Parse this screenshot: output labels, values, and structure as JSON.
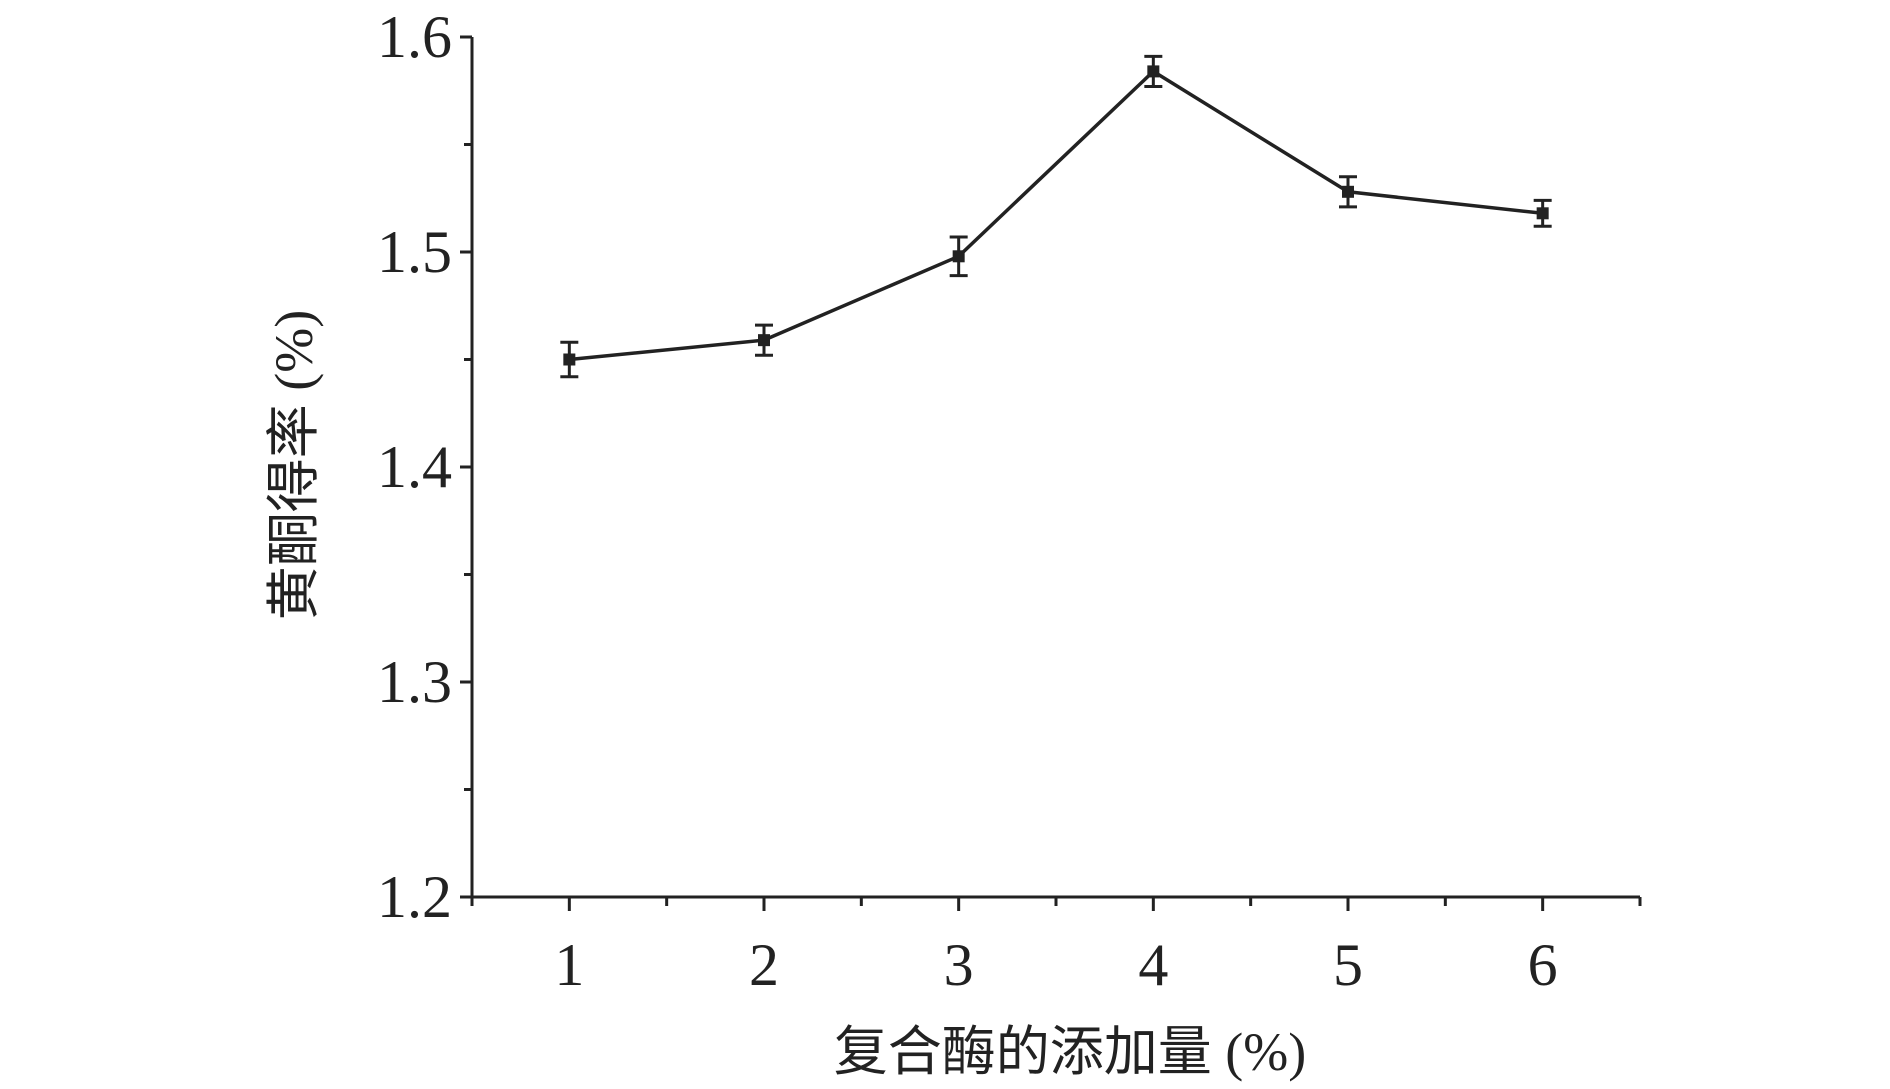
{
  "chart_data": {
    "type": "line",
    "xlabel": "复合酶的添加量 (%)",
    "ylabel": "黄酮得率 (%)",
    "x": [
      1,
      2,
      3,
      4,
      5,
      6
    ],
    "xticks": [
      "1",
      "2",
      "3",
      "4",
      "5",
      "6"
    ],
    "xlim": [
      0.5,
      6.5
    ],
    "ylim": [
      1.2,
      1.6
    ],
    "yticks": [
      "1.2",
      "1.3",
      "1.4",
      "1.5",
      "1.6"
    ],
    "series": [
      {
        "values": [
          1.45,
          1.459,
          1.498,
          1.584,
          1.528,
          1.518
        ],
        "errors": [
          0.008,
          0.007,
          0.009,
          0.007,
          0.007,
          0.006
        ]
      }
    ],
    "grid": false,
    "legend": "none",
    "colors": {
      "line": "#222222",
      "axis": "#222222"
    }
  }
}
